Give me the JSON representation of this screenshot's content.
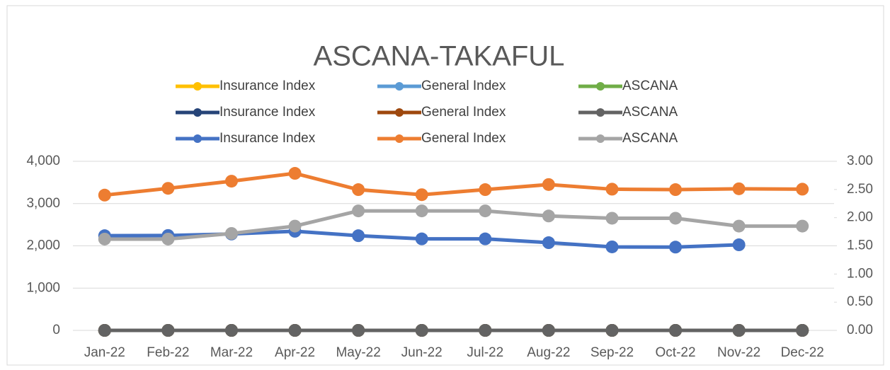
{
  "chart_data": {
    "type": "line",
    "title": "ASCANA-TAKAFUL",
    "categories": [
      "Jan-22",
      "Feb-22",
      "Mar-22",
      "Apr-22",
      "May-22",
      "Jun-22",
      "Jul-22",
      "Aug-22",
      "Sep-22",
      "Oct-22",
      "Nov-22",
      "Dec-22"
    ],
    "series": [
      {
        "name": "Insurance Index",
        "color": "#ffc000",
        "values": [
          0,
          0,
          0,
          0,
          0,
          0,
          0,
          0,
          0,
          0,
          0,
          0
        ]
      },
      {
        "name": "General Index",
        "color": "#5b9bd5",
        "values": [
          0,
          0,
          0,
          0,
          0,
          0,
          0,
          0,
          0,
          0,
          0,
          0
        ]
      },
      {
        "name": "ASCANA",
        "color": "#70ad47",
        "values": [
          0,
          0,
          0,
          0,
          0,
          0,
          0,
          0,
          0,
          0,
          0,
          0
        ]
      },
      {
        "name": "Insurance Index",
        "color": "#264478",
        "values": [
          0,
          0,
          0,
          0,
          0,
          0,
          0,
          0,
          0,
          0,
          0,
          0
        ]
      },
      {
        "name": "General Index",
        "color": "#9e480e",
        "values": [
          0,
          0,
          0,
          0,
          0,
          0,
          0,
          0,
          0,
          0,
          0,
          0
        ]
      },
      {
        "name": "ASCANA",
        "color": "#636363",
        "values": [
          0,
          0,
          0,
          0,
          0,
          0,
          0,
          0,
          0,
          0,
          0,
          0
        ]
      },
      {
        "name": "Insurance Index",
        "color": "#4472c4",
        "values": [
          2240,
          2245,
          2280,
          2345,
          2240,
          2165,
          2165,
          2075,
          1975,
          1970,
          2025,
          null
        ]
      },
      {
        "name": "General Index",
        "color": "#ed7d31",
        "values": [
          3200,
          3360,
          3530,
          3715,
          3330,
          3210,
          3330,
          3450,
          3340,
          3330,
          3350,
          3340
        ]
      },
      {
        "name": "ASCANA",
        "color": "#a5a5a5",
        "axis": "y2",
        "values": [
          1.62,
          1.62,
          1.72,
          1.85,
          2.12,
          2.12,
          2.12,
          2.03,
          1.99,
          1.99,
          1.85,
          1.85
        ]
      }
    ],
    "ylim": [
      0,
      4000
    ],
    "yticks": [
      0,
      {
        "value": 1000,
        "label": "1,000"
      },
      {
        "value": 2000,
        "label": "2,000"
      },
      {
        "value": 3000,
        "label": "3,000"
      },
      {
        "value": 4000,
        "label": "4,000"
      }
    ],
    "y2lim": [
      0,
      3
    ],
    "y2ticks": [
      {
        "value": 0,
        "label": "0.00"
      },
      {
        "value": 0.5,
        "label": "0.50"
      },
      {
        "value": 1,
        "label": "1.00"
      },
      {
        "value": 1.5,
        "label": "1.50"
      },
      {
        "value": 2,
        "label": "2.00"
      },
      {
        "value": 2.5,
        "label": "2.50"
      },
      {
        "value": 3,
        "label": "3.00"
      }
    ],
    "grid": true,
    "legend": "top"
  }
}
